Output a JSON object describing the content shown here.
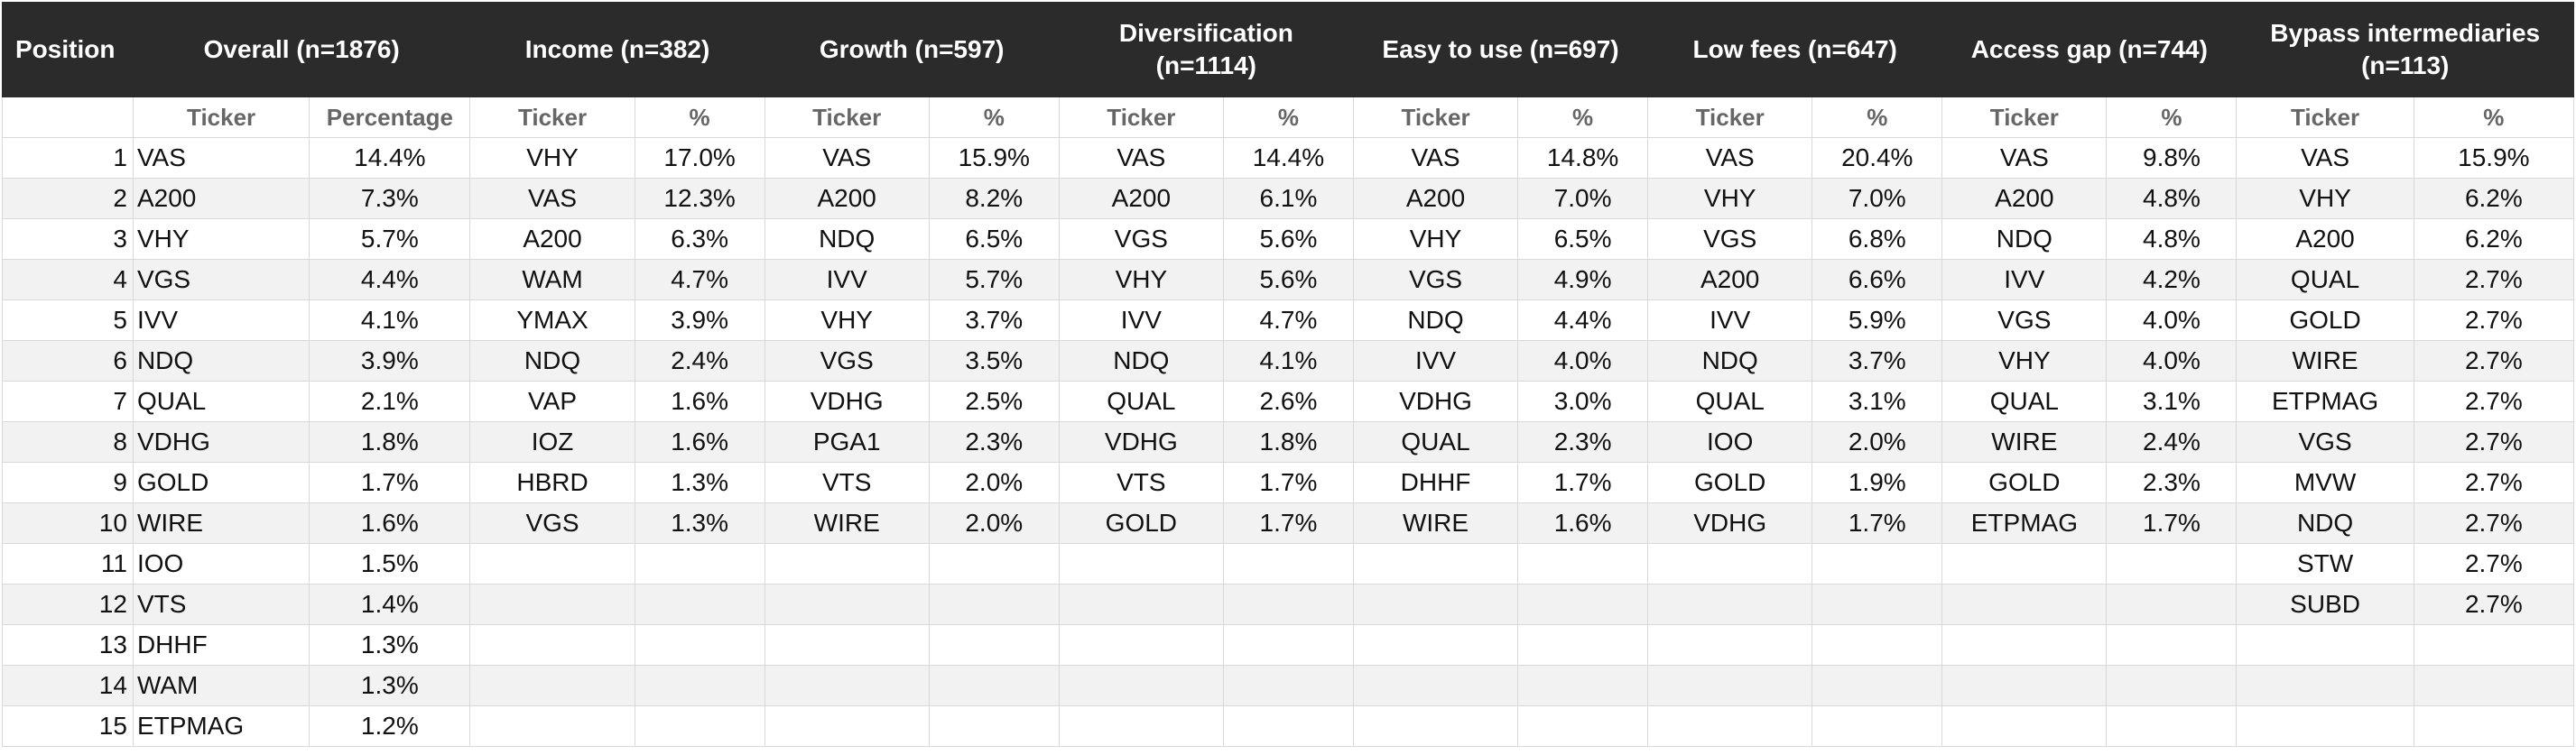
{
  "header": {
    "position": "Position",
    "groups": [
      "Overall (n=1876)",
      "Income (n=382)",
      "Growth (n=597)",
      "Diversification (n=1114)",
      "Easy to use (n=697)",
      "Low fees (n=647)",
      "Access gap (n=744)",
      "Bypass intermediaries (n=113)"
    ],
    "subheaders": [
      "Ticker",
      "Percentage",
      "Ticker",
      "%",
      "Ticker",
      "%",
      "Ticker",
      "%",
      "Ticker",
      "%",
      "Ticker",
      "%",
      "Ticker",
      "%",
      "Ticker",
      "%"
    ]
  },
  "rows": [
    {
      "position": "1",
      "cells": [
        "VAS",
        "14.4%",
        "VHY",
        "17.0%",
        "VAS",
        "15.9%",
        "VAS",
        "14.4%",
        "VAS",
        "14.8%",
        "VAS",
        "20.4%",
        "VAS",
        "9.8%",
        "VAS",
        "15.9%"
      ]
    },
    {
      "position": "2",
      "cells": [
        "A200",
        "7.3%",
        "VAS",
        "12.3%",
        "A200",
        "8.2%",
        "A200",
        "6.1%",
        "A200",
        "7.0%",
        "VHY",
        "7.0%",
        "A200",
        "4.8%",
        "VHY",
        "6.2%"
      ]
    },
    {
      "position": "3",
      "cells": [
        "VHY",
        "5.7%",
        "A200",
        "6.3%",
        "NDQ",
        "6.5%",
        "VGS",
        "5.6%",
        "VHY",
        "6.5%",
        "VGS",
        "6.8%",
        "NDQ",
        "4.8%",
        "A200",
        "6.2%"
      ]
    },
    {
      "position": "4",
      "cells": [
        "VGS",
        "4.4%",
        "WAM",
        "4.7%",
        "IVV",
        "5.7%",
        "VHY",
        "5.6%",
        "VGS",
        "4.9%",
        "A200",
        "6.6%",
        "IVV",
        "4.2%",
        "QUAL",
        "2.7%"
      ]
    },
    {
      "position": "5",
      "cells": [
        "IVV",
        "4.1%",
        "YMAX",
        "3.9%",
        "VHY",
        "3.7%",
        "IVV",
        "4.7%",
        "NDQ",
        "4.4%",
        "IVV",
        "5.9%",
        "VGS",
        "4.0%",
        "GOLD",
        "2.7%"
      ]
    },
    {
      "position": "6",
      "cells": [
        "NDQ",
        "3.9%",
        "NDQ",
        "2.4%",
        "VGS",
        "3.5%",
        "NDQ",
        "4.1%",
        "IVV",
        "4.0%",
        "NDQ",
        "3.7%",
        "VHY",
        "4.0%",
        "WIRE",
        "2.7%"
      ]
    },
    {
      "position": "7",
      "cells": [
        "QUAL",
        "2.1%",
        "VAP",
        "1.6%",
        "VDHG",
        "2.5%",
        "QUAL",
        "2.6%",
        "VDHG",
        "3.0%",
        "QUAL",
        "3.1%",
        "QUAL",
        "3.1%",
        "ETPMAG",
        "2.7%"
      ]
    },
    {
      "position": "8",
      "cells": [
        "VDHG",
        "1.8%",
        "IOZ",
        "1.6%",
        "PGA1",
        "2.3%",
        "VDHG",
        "1.8%",
        "QUAL",
        "2.3%",
        "IOO",
        "2.0%",
        "WIRE",
        "2.4%",
        "VGS",
        "2.7%"
      ]
    },
    {
      "position": "9",
      "cells": [
        "GOLD",
        "1.7%",
        "HBRD",
        "1.3%",
        "VTS",
        "2.0%",
        "VTS",
        "1.7%",
        "DHHF",
        "1.7%",
        "GOLD",
        "1.9%",
        "GOLD",
        "2.3%",
        "MVW",
        "2.7%"
      ]
    },
    {
      "position": "10",
      "cells": [
        "WIRE",
        "1.6%",
        "VGS",
        "1.3%",
        "WIRE",
        "2.0%",
        "GOLD",
        "1.7%",
        "WIRE",
        "1.6%",
        "VDHG",
        "1.7%",
        "ETPMAG",
        "1.7%",
        "NDQ",
        "2.7%"
      ]
    },
    {
      "position": "11",
      "cells": [
        "IOO",
        "1.5%",
        "",
        "",
        "",
        "",
        "",
        "",
        "",
        "",
        "",
        "",
        "",
        "",
        "STW",
        "2.7%"
      ]
    },
    {
      "position": "12",
      "cells": [
        "VTS",
        "1.4%",
        "",
        "",
        "",
        "",
        "",
        "",
        "",
        "",
        "",
        "",
        "",
        "",
        "SUBD",
        "2.7%"
      ]
    },
    {
      "position": "13",
      "cells": [
        "DHHF",
        "1.3%",
        "",
        "",
        "",
        "",
        "",
        "",
        "",
        "",
        "",
        "",
        "",
        "",
        "",
        ""
      ]
    },
    {
      "position": "14",
      "cells": [
        "WAM",
        "1.3%",
        "",
        "",
        "",
        "",
        "",
        "",
        "",
        "",
        "",
        "",
        "",
        "",
        "",
        ""
      ]
    },
    {
      "position": "15",
      "cells": [
        "ETPMAG",
        "1.2%",
        "",
        "",
        "",
        "",
        "",
        "",
        "",
        "",
        "",
        "",
        "",
        "",
        "",
        ""
      ]
    }
  ]
}
